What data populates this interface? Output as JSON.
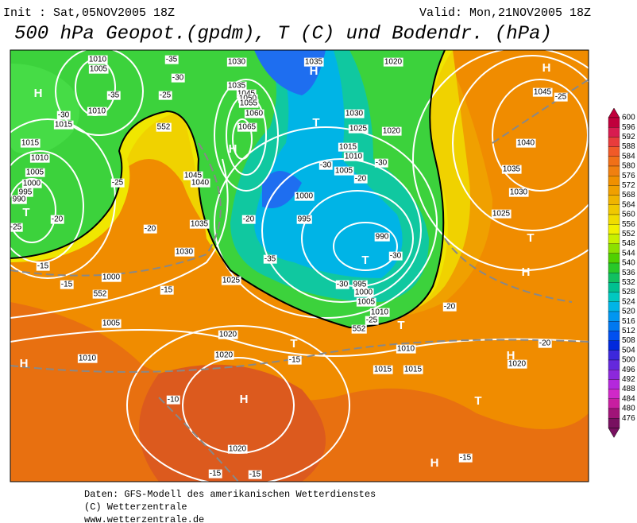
{
  "header": {
    "init": "Init : Sat,05NOV2005 18Z",
    "valid": "Valid: Mon,21NOV2005 18Z",
    "title": "500 hPa Geopot.(gpdm), T (C) und Bodendr. (hPa)"
  },
  "footer": [
    "Daten: GFS-Modell des amerikanischen Wetterdienstes",
    "(C) Wetterzentrale",
    "www.wetterzentrale.de"
  ],
  "colorbar": {
    "levels": [
      "600",
      "596",
      "592",
      "588",
      "584",
      "580",
      "576",
      "572",
      "568",
      "564",
      "560",
      "556",
      "552",
      "548",
      "544",
      "540",
      "536",
      "532",
      "528",
      "524",
      "520",
      "516",
      "512",
      "508",
      "504",
      "500",
      "496",
      "492",
      "488",
      "484",
      "480",
      "476"
    ],
    "colors": [
      "#c0003c",
      "#d81c50",
      "#e83c3c",
      "#f05a28",
      "#f07018",
      "#f08010",
      "#f09000",
      "#f0a000",
      "#f0b400",
      "#f0c800",
      "#f0dc00",
      "#f0f000",
      "#c8f000",
      "#8ce000",
      "#50d000",
      "#28c828",
      "#10c060",
      "#00c090",
      "#00c8c0",
      "#00b4e6",
      "#0096f0",
      "#0078f0",
      "#0050f0",
      "#0028dc",
      "#3c28dc",
      "#6428dc",
      "#8c28dc",
      "#b428dc",
      "#d028c8",
      "#c81ea0",
      "#a01478",
      "#781060"
    ]
  },
  "pressure_centers": [
    "H",
    "H",
    "H",
    "T",
    "H",
    "T",
    "T",
    "H",
    "T",
    "T",
    "T",
    "H",
    "H",
    "H",
    "T",
    "H"
  ],
  "isobar_labels": [
    "1010",
    "1005",
    "1030",
    "1035",
    "1020",
    "1035",
    "1045",
    "1050",
    "1055",
    "1060",
    "1065",
    "1010",
    "1015",
    "1030",
    "1025",
    "1020",
    "1015",
    "1010",
    "1005",
    "1000",
    "995",
    "990",
    "995",
    "1000",
    "1005",
    "1010",
    "1015",
    "1015",
    "1010",
    "1020",
    "1020",
    "1005",
    "1000",
    "1010",
    "1020",
    "1015",
    "1010",
    "1005",
    "1000",
    "995",
    "990",
    "1045",
    "1040",
    "1035",
    "1030",
    "1025",
    "1040",
    "1035",
    "1030",
    "1025",
    "1045",
    "1020"
  ],
  "temperature_labels": [
    "-35",
    "-30",
    "-25",
    "-35",
    "-30",
    "-25",
    "-20",
    "-25",
    "-20",
    "-15",
    "-15",
    "-15",
    "-20",
    "-35",
    "-30",
    "-25",
    "-30",
    "-20",
    "-20",
    "-15",
    "-10",
    "-15",
    "-15",
    "-15",
    "-25",
    "-30",
    "-30",
    "-20"
  ],
  "height_labels": [
    "552",
    "552",
    "552"
  ]
}
